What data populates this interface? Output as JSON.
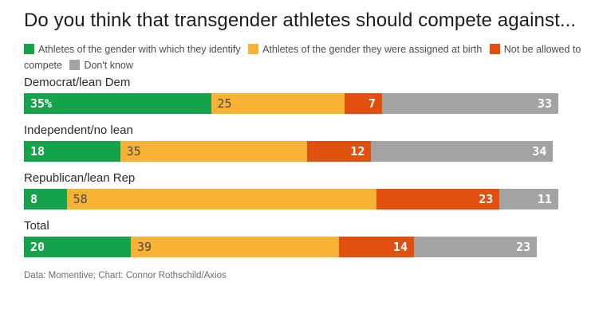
{
  "title": "Do you think that transgender athletes should compete against...",
  "legend": [
    {
      "label": "Athletes of the gender with which they identify",
      "color": "#14a24a"
    },
    {
      "label": "Athletes of the gender they were assigned at birth",
      "color": "#f9b234"
    },
    {
      "label": "Not be allowed to compete",
      "color": "#e1500e"
    },
    {
      "label": "Don't know",
      "color": "#a3a3a3"
    }
  ],
  "footer": "Data: Momentive; Chart: Connor Rothschild/Axios",
  "chart_data": {
    "type": "bar",
    "orientation": "horizontal_stacked",
    "title": "Do you think that transgender athletes should compete against...",
    "xlabel": "",
    "ylabel": "",
    "xlim": [
      0,
      100
    ],
    "unit": "percent",
    "grid": false,
    "legend_position": "top",
    "categories": [
      "Democrat/lean Dem",
      "Independent/no lean",
      "Republican/lean Rep",
      "Total"
    ],
    "series": [
      {
        "name": "Athletes of the gender with which they identify",
        "color": "#14a24a",
        "values": [
          35,
          18,
          8,
          20
        ]
      },
      {
        "name": "Athletes of the gender they were assigned at birth",
        "color": "#f9b234",
        "values": [
          25,
          35,
          58,
          39
        ]
      },
      {
        "name": "Not be allowed to compete",
        "color": "#e1500e",
        "values": [
          7,
          12,
          23,
          14
        ]
      },
      {
        "name": "Don't know",
        "color": "#a3a3a3",
        "values": [
          33,
          34,
          11,
          23
        ]
      }
    ],
    "value_labels": [
      [
        "35%",
        "25",
        "7",
        "33"
      ],
      [
        "18",
        "35",
        "12",
        "34"
      ],
      [
        "8",
        "58",
        "23",
        "11"
      ],
      [
        "20",
        "39",
        "14",
        "23"
      ]
    ]
  }
}
